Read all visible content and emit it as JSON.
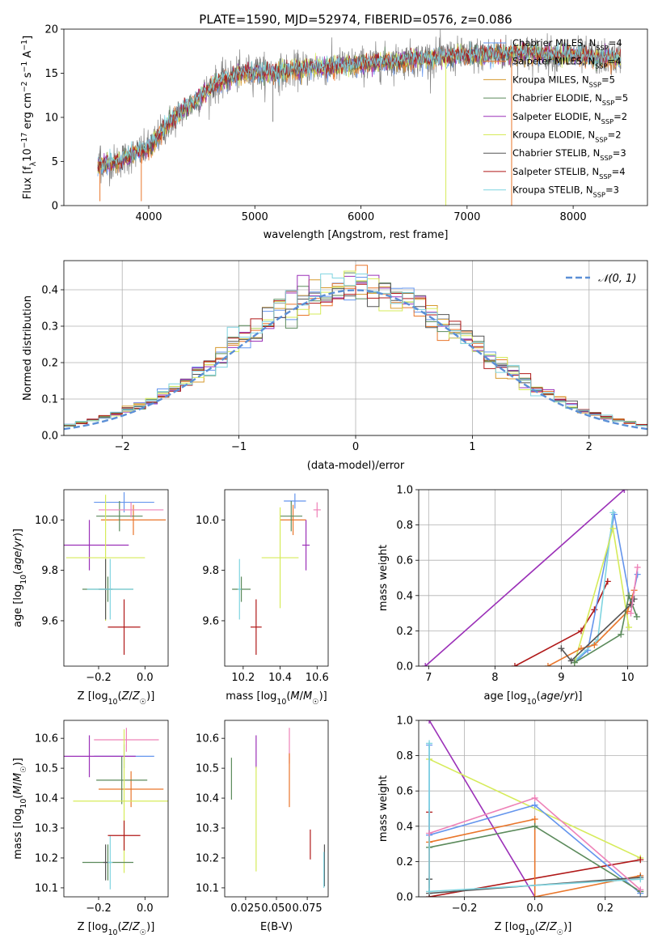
{
  "figure_title": "PLATE=1590, MJD=52974, FIBERID=0576, z=0.086",
  "colors": {
    "chabrier_miles": "#6495ED",
    "salpeter_miles": "#E9762B",
    "kroupa_miles": "#D69A2E",
    "chabrier_elodie": "#5B8A5B",
    "salpeter_elodie": "#9B30B8",
    "kroupa_elodie": "#D6EB5A",
    "chabrier_stelib": "#555555",
    "salpeter_stelib": "#B01818",
    "kroupa_stelib": "#7FD4E0",
    "pink": "#EE82B8",
    "data": "#808080",
    "normal": "#5B8FD6"
  },
  "chart_data": [
    {
      "type": "line",
      "id": "spectrum",
      "title": "PLATE=1590, MJD=52974, FIBERID=0576, z=0.086",
      "xlabel": "wavelength [Angstrom, rest frame]",
      "ylabel": "Flux [f_λ 10^-17 erg cm^-2 s^-1 A^-1]",
      "xlim": [
        3200,
        8700
      ],
      "ylim": [
        0,
        20
      ],
      "xticks": [
        4000,
        5000,
        6000,
        7000,
        8000
      ],
      "yticks": [
        0,
        5,
        10,
        15,
        20
      ],
      "legend_position": "top-right",
      "legend": [
        {
          "base": "Chabrier MILES, N",
          "n": "4",
          "color_key": "chabrier_miles"
        },
        {
          "base": "Salpeter MILES, N",
          "n": "4",
          "color_key": "salpeter_miles"
        },
        {
          "base": "Kroupa MILES, N",
          "n": "5",
          "color_key": "kroupa_miles"
        },
        {
          "base": "Chabrier ELODIE, N",
          "n": "5",
          "color_key": "chabrier_elodie"
        },
        {
          "base": "Salpeter ELODIE, N",
          "n": "2",
          "color_key": "salpeter_elodie"
        },
        {
          "base": "Kroupa ELODIE, N",
          "n": "2",
          "color_key": "kroupa_elodie"
        },
        {
          "base": "Chabrier STELIB, N",
          "n": "3",
          "color_key": "chabrier_stelib"
        },
        {
          "base": "Salpeter STELIB, N",
          "n": "4",
          "color_key": "salpeter_stelib"
        },
        {
          "base": "Kroupa STELIB, N",
          "n": "3",
          "color_key": "kroupa_stelib"
        }
      ],
      "legend_subscript": "SSP",
      "wavelength_range": [
        3520,
        8450
      ],
      "continuum_knots": [
        [
          3520,
          4.5
        ],
        [
          3700,
          5.0
        ],
        [
          3900,
          6.0
        ],
        [
          4000,
          6.5
        ],
        [
          4200,
          9.5
        ],
        [
          4400,
          11.5
        ],
        [
          4600,
          13.5
        ],
        [
          4800,
          14.8
        ],
        [
          5000,
          15.2
        ],
        [
          5200,
          15.0
        ],
        [
          5500,
          15.6
        ],
        [
          6000,
          16.0
        ],
        [
          6500,
          16.6
        ],
        [
          7000,
          17.0
        ],
        [
          7500,
          17.3
        ],
        [
          8000,
          17.0
        ],
        [
          8450,
          16.6
        ]
      ],
      "dips": [
        [
          3540,
          0.5
        ],
        [
          3930,
          0.5
        ],
        [
          5170,
          9.5
        ],
        [
          6800,
          0.0
        ],
        [
          7420,
          0.0
        ]
      ]
    },
    {
      "type": "histogram",
      "id": "residuals",
      "xlabel": "(data-model)/error",
      "ylabel": "Normed distribution",
      "xlim": [
        -2.5,
        2.5
      ],
      "ylim": [
        0,
        0.48
      ],
      "xticks": [
        -2,
        -1,
        0,
        1,
        2
      ],
      "yticks": [
        0.0,
        0.1,
        0.2,
        0.3,
        0.4
      ],
      "bin_width": 0.1,
      "legend_position": "top-right",
      "legend_label": "𝒩(0, 1)",
      "grid": true
    },
    {
      "type": "errorbar",
      "id": "age_vs_Z",
      "xlabel": "Z [log10(Z/Z☉)]",
      "ylabel": "age  [log10(age/yr)]",
      "xlim": [
        -0.35,
        0.1
      ],
      "ylim": [
        9.42,
        10.12
      ],
      "xticks": [
        -0.2,
        0.0
      ],
      "xticklabels": [
        "−0.2",
        "0.0"
      ],
      "yticks": [
        9.6,
        9.8,
        10.0
      ],
      "yticklabels": [
        "9.6",
        "9.8",
        "10.0"
      ],
      "points": [
        {
          "x": -0.09,
          "y": 10.07,
          "xerr": 0.13,
          "yerr": 0.04,
          "color_key": "chabrier_miles"
        },
        {
          "x": -0.05,
          "y": 10.0,
          "xerr": 0.14,
          "yerr": 0.06,
          "color_key": "salpeter_miles"
        },
        {
          "x": -0.11,
          "y": 10.015,
          "xerr": 0.1,
          "yerr": 0.06,
          "color_key": "chabrier_elodie"
        },
        {
          "x": -0.24,
          "y": 9.9,
          "xerr": 0.17,
          "yerr": 0.1,
          "color_key": "salpeter_elodie"
        },
        {
          "x": -0.06,
          "y": 10.04,
          "xerr": 0.14,
          "yerr": 0.03,
          "color_key": "pink"
        },
        {
          "x": -0.17,
          "y": 9.85,
          "xerr": 0.17,
          "yerr": 0.25,
          "color_key": "kroupa_elodie"
        },
        {
          "x": -0.16,
          "y": 9.725,
          "xerr": 0.11,
          "yerr": 0.05,
          "color_key": "chabrier_elodie"
        },
        {
          "x": -0.17,
          "y": 9.725,
          "xerr": 0.03,
          "yerr": 0.12,
          "color_key": "chabrier_stelib"
        },
        {
          "x": -0.15,
          "y": 9.725,
          "xerr": 0.1,
          "yerr": 0.12,
          "color_key": "kroupa_stelib"
        },
        {
          "x": -0.09,
          "y": 9.575,
          "xerr": 0.07,
          "yerr": 0.11,
          "color_key": "salpeter_stelib"
        }
      ]
    },
    {
      "type": "errorbar",
      "id": "age_vs_mass",
      "xlabel": "mass [log10(M/M☉)]",
      "ylabel": "",
      "xlim": [
        10.1,
        10.66
      ],
      "ylim": [
        9.42,
        10.12
      ],
      "xticks": [
        10.2,
        10.4,
        10.6
      ],
      "xticklabels": [
        "10.2",
        "10.4",
        "10.6"
      ],
      "yticks": [
        9.6,
        9.8,
        10.0
      ],
      "yticklabels": [
        "9.6",
        "9.8",
        "10.0"
      ],
      "points": [
        {
          "x": 10.48,
          "y": 10.075,
          "xerr": 0.06,
          "yerr": 0.03,
          "color_key": "chabrier_miles"
        },
        {
          "x": 10.47,
          "y": 10.0,
          "xerr": 0.07,
          "yerr": 0.06,
          "color_key": "salpeter_miles"
        },
        {
          "x": 10.46,
          "y": 10.015,
          "xerr": 0.06,
          "yerr": 0.06,
          "color_key": "chabrier_elodie"
        },
        {
          "x": 10.54,
          "y": 9.9,
          "xerr": 0.02,
          "yerr": 0.1,
          "color_key": "salpeter_elodie"
        },
        {
          "x": 10.6,
          "y": 10.04,
          "xerr": 0.02,
          "yerr": 0.03,
          "color_key": "pink"
        },
        {
          "x": 10.4,
          "y": 9.85,
          "xerr": 0.1,
          "yerr": 0.2,
          "color_key": "kroupa_elodie"
        },
        {
          "x": 10.19,
          "y": 9.725,
          "xerr": 0.05,
          "yerr": 0.05,
          "color_key": "chabrier_elodie"
        },
        {
          "x": 10.18,
          "y": 9.725,
          "xerr": 0.01,
          "yerr": 0.12,
          "color_key": "kroupa_stelib"
        },
        {
          "x": 10.27,
          "y": 9.575,
          "xerr": 0.03,
          "yerr": 0.11,
          "color_key": "salpeter_stelib"
        }
      ]
    },
    {
      "type": "line",
      "id": "mass_weight_vs_age",
      "xlabel": "age  [log10(age/yr)]",
      "ylabel": "mass weight",
      "xlim": [
        6.85,
        10.3
      ],
      "ylim": [
        0,
        1.0
      ],
      "xticks": [
        7,
        8,
        9,
        10
      ],
      "xticklabels": [
        "7",
        "8",
        "9",
        "10"
      ],
      "yticks": [
        0.0,
        0.2,
        0.4,
        0.6,
        0.8,
        1.0
      ],
      "yticklabels": [
        "0.0",
        "0.2",
        "0.4",
        "0.6",
        "0.8",
        "1.0"
      ],
      "grid": true,
      "series": [
        {
          "color_key": "salpeter_elodie",
          "points": [
            [
              6.95,
              0.0
            ],
            [
              9.95,
              1.0
            ]
          ]
        },
        {
          "color_key": "salpeter_stelib",
          "points": [
            [
              8.3,
              0.0
            ],
            [
              9.3,
              0.2
            ],
            [
              9.5,
              0.32
            ],
            [
              9.7,
              0.48
            ]
          ]
        },
        {
          "color_key": "chabrier_miles",
          "points": [
            [
              9.2,
              0.02
            ],
            [
              9.4,
              0.09
            ],
            [
              9.8,
              0.86
            ],
            [
              10.05,
              0.35
            ],
            [
              10.15,
              0.52
            ]
          ]
        },
        {
          "color_key": "kroupa_stelib",
          "points": [
            [
              9.2,
              0.03
            ],
            [
              9.55,
              0.15
            ],
            [
              9.78,
              0.87
            ]
          ]
        },
        {
          "color_key": "kroupa_elodie",
          "points": [
            [
              9.2,
              0.02
            ],
            [
              9.78,
              0.78
            ],
            [
              10.02,
              0.22
            ]
          ]
        },
        {
          "color_key": "salpeter_miles",
          "points": [
            [
              8.8,
              0.0
            ],
            [
              9.3,
              0.1
            ],
            [
              9.5,
              0.12
            ],
            [
              10.0,
              0.31
            ],
            [
              10.1,
              0.43
            ]
          ]
        },
        {
          "color_key": "chabrier_elodie",
          "points": [
            [
              9.2,
              0.02
            ],
            [
              9.9,
              0.18
            ],
            [
              10.02,
              0.4
            ],
            [
              10.14,
              0.28
            ]
          ]
        },
        {
          "color_key": "chabrier_stelib",
          "points": [
            [
              9.0,
              0.1
            ],
            [
              9.15,
              0.03
            ],
            [
              10.05,
              0.35
            ],
            [
              10.1,
              0.38
            ]
          ]
        },
        {
          "color_key": "pink",
          "points": [
            [
              10.05,
              0.3
            ],
            [
              10.15,
              0.56
            ]
          ]
        }
      ]
    },
    {
      "type": "errorbar",
      "id": "mass_vs_Z",
      "xlabel": "Z [log10(Z/Z☉)]",
      "ylabel": "mass [log10(M/M☉)]",
      "xlim": [
        -0.35,
        0.1
      ],
      "ylim": [
        10.07,
        10.66
      ],
      "xticks": [
        -0.2,
        0.0
      ],
      "xticklabels": [
        "−0.2",
        "0.0"
      ],
      "yticks": [
        10.1,
        10.2,
        10.3,
        10.4,
        10.5,
        10.6
      ],
      "yticklabels": [
        "10.1",
        "10.2",
        "10.3",
        "10.4",
        "10.5",
        "10.6"
      ],
      "points": [
        {
          "x": -0.09,
          "y": 10.54,
          "xerr": 0.13,
          "yerr": 0.04,
          "color_key": "chabrier_miles"
        },
        {
          "x": -0.06,
          "y": 10.43,
          "xerr": 0.14,
          "yerr": 0.06,
          "color_key": "salpeter_miles"
        },
        {
          "x": -0.1,
          "y": 10.46,
          "xerr": 0.11,
          "yerr": 0.08,
          "color_key": "chabrier_elodie"
        },
        {
          "x": -0.24,
          "y": 10.54,
          "xerr": 0.2,
          "yerr": 0.07,
          "color_key": "salpeter_elodie"
        },
        {
          "x": -0.08,
          "y": 10.595,
          "xerr": 0.14,
          "yerr": 0.04,
          "color_key": "pink"
        },
        {
          "x": -0.09,
          "y": 10.39,
          "xerr": 0.22,
          "yerr": 0.24,
          "color_key": "kroupa_elodie"
        },
        {
          "x": -0.16,
          "y": 10.185,
          "xerr": 0.11,
          "yerr": 0.06,
          "color_key": "chabrier_elodie"
        },
        {
          "x": -0.17,
          "y": 10.185,
          "xerr": 0.01,
          "yerr": 0.06,
          "color_key": "chabrier_stelib"
        },
        {
          "x": -0.15,
          "y": 10.185,
          "xerr": 0.01,
          "yerr": 0.09,
          "color_key": "kroupa_stelib"
        },
        {
          "x": -0.09,
          "y": 10.275,
          "xerr": 0.07,
          "yerr": 0.05,
          "color_key": "salpeter_stelib"
        }
      ]
    },
    {
      "type": "errorbar",
      "id": "mass_vs_ebv",
      "xlabel": "E(B-V)",
      "ylabel": "",
      "xlim": [
        0.008,
        0.092
      ],
      "ylim": [
        10.07,
        10.66
      ],
      "xticks": [
        0.025,
        0.05,
        0.075
      ],
      "xticklabels": [
        "0.025",
        "0.050",
        "0.075"
      ],
      "yticks": [
        10.1,
        10.2,
        10.3,
        10.4,
        10.5,
        10.6
      ],
      "yticklabels": [
        "10.1",
        "10.2",
        "10.3",
        "10.4",
        "10.5",
        "10.6"
      ],
      "points": [
        {
          "x": 0.0135,
          "y": 10.465,
          "xerr": 0.0,
          "yerr": 0.07,
          "color_key": "chabrier_elodie"
        },
        {
          "x": 0.0335,
          "y": 10.555,
          "xerr": 0.0,
          "yerr": 0.055,
          "color_key": "salpeter_elodie"
        },
        {
          "x": 0.0335,
          "y": 10.33,
          "xerr": 0.0,
          "yerr": 0.175,
          "color_key": "kroupa_elodie"
        },
        {
          "x": 0.0605,
          "y": 10.575,
          "xerr": 0.0,
          "yerr": 0.06,
          "color_key": "pink"
        },
        {
          "x": 0.0605,
          "y": 10.46,
          "xerr": 0.0,
          "yerr": 0.09,
          "color_key": "salpeter_miles"
        },
        {
          "x": 0.0775,
          "y": 10.245,
          "xerr": 0.0,
          "yerr": 0.05,
          "color_key": "salpeter_stelib"
        },
        {
          "x": 0.089,
          "y": 10.175,
          "xerr": 0.0,
          "yerr": 0.07,
          "color_key": "chabrier_stelib"
        },
        {
          "x": 0.0885,
          "y": 10.16,
          "xerr": 0.0,
          "yerr": 0.06,
          "color_key": "kroupa_stelib"
        }
      ]
    },
    {
      "type": "line",
      "id": "mass_weight_vs_Z",
      "xlabel": "Z [log10(Z/Z☉)]",
      "ylabel": "mass weight",
      "xlim": [
        -0.33,
        0.32
      ],
      "ylim": [
        0,
        1.0
      ],
      "xticks": [
        -0.2,
        0.0,
        0.2
      ],
      "xticklabels": [
        "−0.2",
        "0.0",
        "0.2"
      ],
      "yticks": [
        0.0,
        0.2,
        0.4,
        0.6,
        0.8,
        1.0
      ],
      "yticklabels": [
        "0.0",
        "0.2",
        "0.4",
        "0.6",
        "0.8",
        "1.0"
      ],
      "grid": true,
      "series": [
        {
          "color_key": "salpeter_elodie",
          "points": [
            [
              -0.3,
              1.0
            ],
            [
              0.0,
              0.0
            ]
          ]
        },
        {
          "color_key": "kroupa_elodie",
          "points": [
            [
              -0.3,
              0.78
            ],
            [
              0.3,
              0.22
            ]
          ]
        },
        {
          "color_key": "salpeter_stelib",
          "points": [
            [
              -0.3,
              0.48
            ],
            [
              -0.3,
              0.0
            ],
            [
              0.3,
              0.21
            ]
          ]
        },
        {
          "color_key": "chabrier_miles",
          "points": [
            [
              -0.3,
              0.86
            ],
            [
              -0.3,
              0.35
            ],
            [
              0.0,
              0.52
            ],
            [
              0.3,
              0.02
            ]
          ]
        },
        {
          "color_key": "salpeter_miles",
          "points": [
            [
              -0.3,
              0.31
            ],
            [
              0.0,
              0.44
            ],
            [
              0.0,
              0.0
            ],
            [
              0.3,
              0.12
            ]
          ]
        },
        {
          "color_key": "chabrier_elodie",
          "points": [
            [
              -0.3,
              0.28
            ],
            [
              0.0,
              0.4
            ],
            [
              0.3,
              0.03
            ]
          ]
        },
        {
          "color_key": "chabrier_stelib",
          "points": [
            [
              -0.3,
              0.1
            ],
            [
              -0.3,
              0.02
            ],
            [
              0.3,
              0.11
            ]
          ]
        },
        {
          "color_key": "kroupa_stelib",
          "points": [
            [
              -0.3,
              0.87
            ],
            [
              -0.3,
              0.03
            ],
            [
              0.3,
              0.1
            ]
          ]
        },
        {
          "color_key": "pink",
          "points": [
            [
              -0.3,
              0.36
            ],
            [
              0.0,
              0.56
            ],
            [
              0.3,
              0.04
            ]
          ]
        }
      ]
    }
  ]
}
